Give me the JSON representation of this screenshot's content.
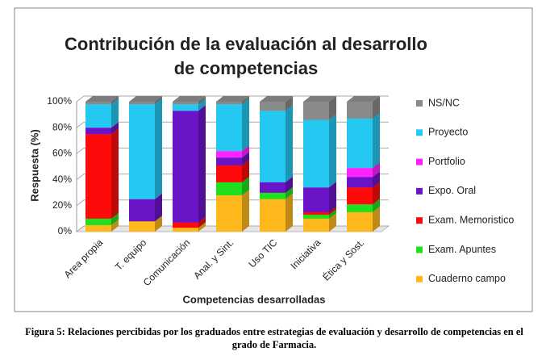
{
  "chart_data": {
    "type": "stacked-bar-3d",
    "title": "Contribución de la evaluación al desarrollo de competencias",
    "xlabel": "Competencias desarrolladas",
    "ylabel": "Respuesta (%)",
    "categories": [
      "Area propia",
      "T. equipo",
      "Comunicación",
      "Anal. y Sint.",
      "Uso TIC",
      "Iniciativa",
      "Ética y Sost."
    ],
    "series": [
      {
        "name": "Cuaderno campo",
        "color": "#ffb81c",
        "values": [
          5,
          8,
          3,
          28,
          25,
          10,
          15
        ]
      },
      {
        "name": "Exam. Apuntes",
        "color": "#1fe01f",
        "values": [
          5,
          0,
          0,
          10,
          5,
          3,
          6
        ]
      },
      {
        "name": "Exam. Memoristico",
        "color": "#ff0a0a",
        "values": [
          65,
          0,
          4,
          13,
          0,
          2,
          13
        ]
      },
      {
        "name": "Expo. Oral",
        "color": "#6a14c8",
        "values": [
          5,
          17,
          86,
          6,
          8,
          19,
          8
        ]
      },
      {
        "name": "Portfolio",
        "color": "#ff22ff",
        "values": [
          0,
          0,
          0,
          5,
          0,
          0,
          7
        ]
      },
      {
        "name": "Proyecto",
        "color": "#24c8f0",
        "values": [
          18,
          73,
          5,
          36,
          55,
          52,
          38
        ]
      },
      {
        "name": "NS/NC",
        "color": "#8a8a8a",
        "values": [
          2,
          2,
          2,
          2,
          7,
          14,
          13
        ]
      }
    ],
    "ylim": [
      0,
      100
    ],
    "yticks": [
      {
        "value": 0,
        "label": "0%"
      },
      {
        "value": 20,
        "label": "20%"
      },
      {
        "value": 40,
        "label": "40%"
      },
      {
        "value": 60,
        "label": "60%"
      },
      {
        "value": 80,
        "label": "80%"
      },
      {
        "value": 100,
        "label": "100%"
      }
    ],
    "grid": true
  },
  "caption": "Figura 5: Relaciones percibidas por los graduados entre estrategias de evaluación y desarrollo de competencias en el grado de Farmacia."
}
